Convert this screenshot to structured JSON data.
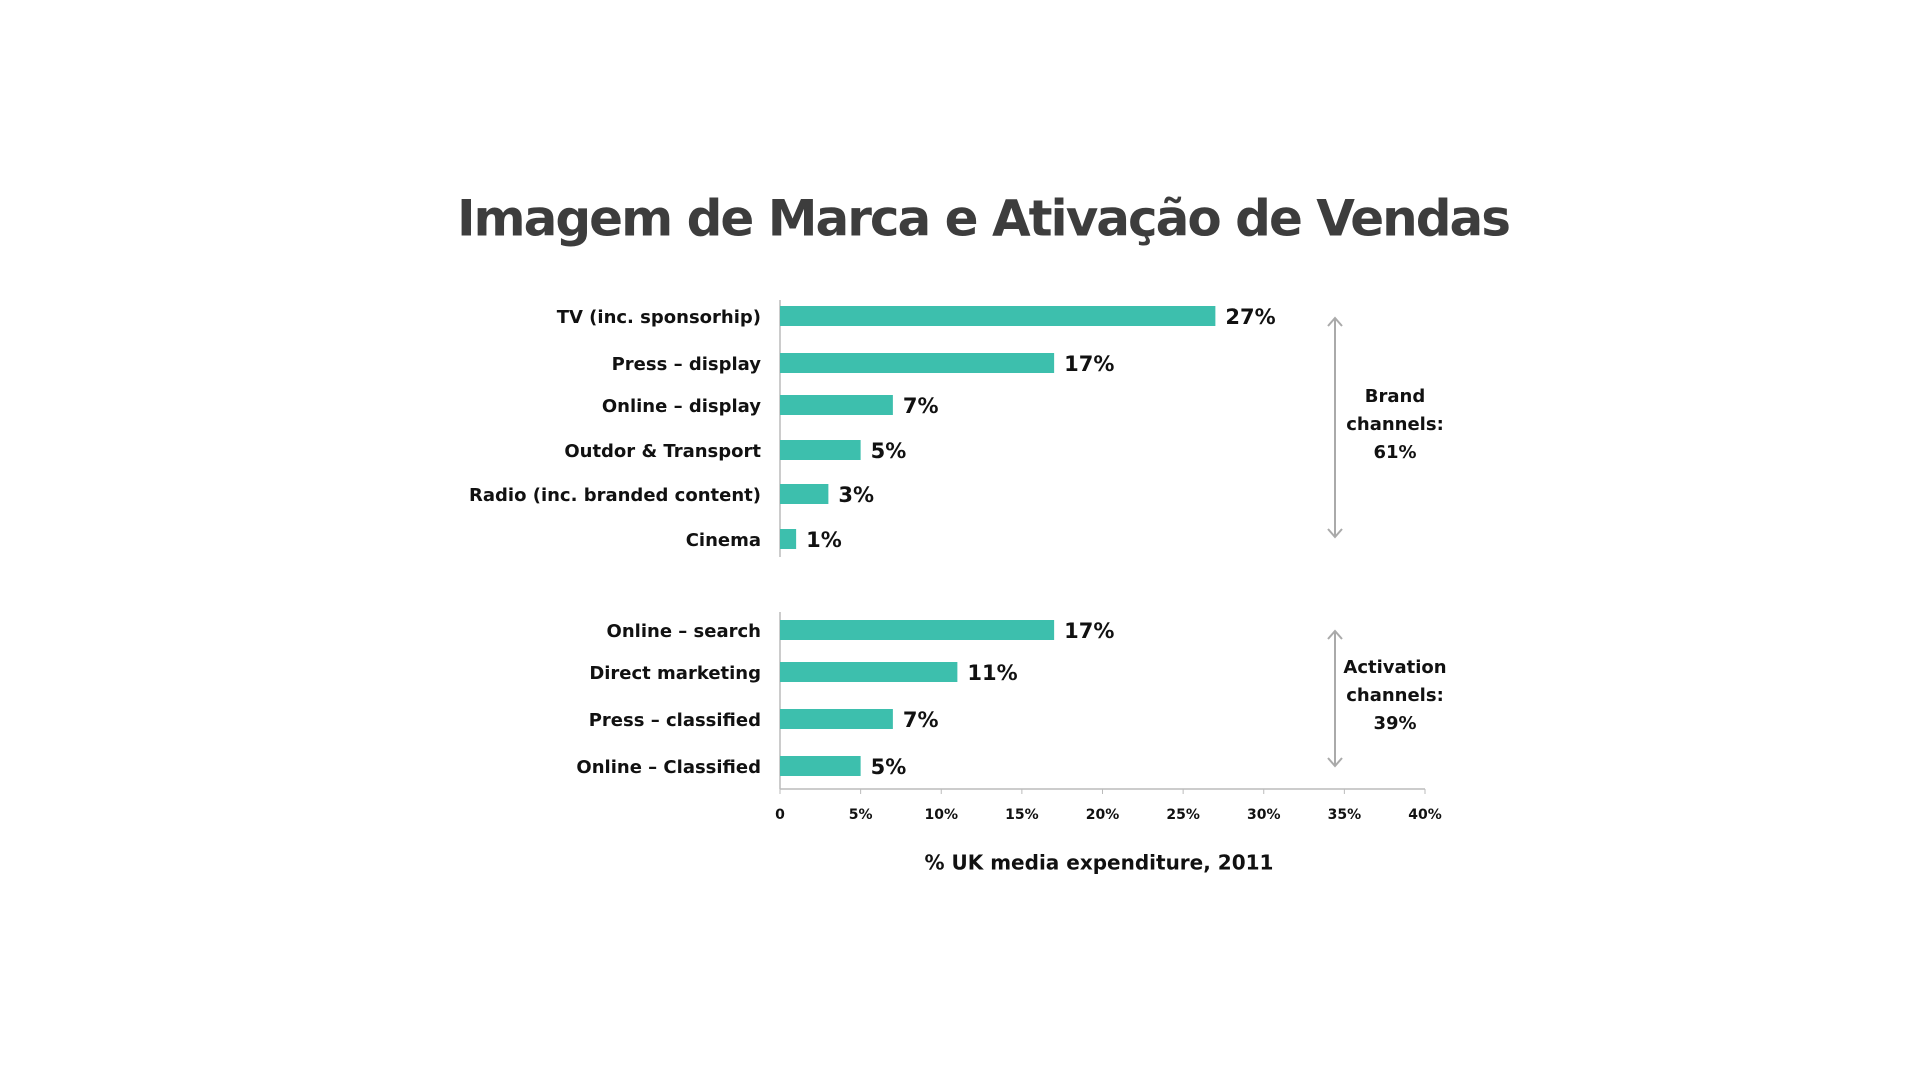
{
  "chart_data": {
    "type": "bar",
    "orientation": "horizontal",
    "title": "Imagem de Marca e Ativação de Vendas",
    "categories": [
      "TV (inc. sponsorhip)",
      "Press – display",
      "Online – display",
      "Outdor & Transport",
      "Radio (inc. branded content)",
      "Cinema",
      "Online – search",
      "Direct marketing",
      "Press – classified",
      "Online – Classified"
    ],
    "values": [
      27,
      17,
      7,
      5,
      3,
      1,
      17,
      11,
      7,
      5
    ],
    "value_labels": [
      "27%",
      "17%",
      "7%",
      "5%",
      "3%",
      "1%",
      "17%",
      "11%",
      "7%",
      "5%"
    ],
    "color": "#3dbfad",
    "xlim": [
      0,
      40
    ],
    "xticks": [
      0,
      {
        "value": 5,
        "label": "5%"
      },
      {
        "value": 10,
        "label": "10%"
      },
      {
        "value": 15,
        "label": "15%"
      },
      {
        "value": 20,
        "label": "20%"
      },
      {
        "value": 25,
        "label": "25%"
      },
      {
        "value": 30,
        "label": "30%"
      },
      {
        "value": 35,
        "label": "35%"
      },
      {
        "value": 40,
        "label": "40%"
      }
    ],
    "xlabel": "% UK media expenditure, 2011",
    "annotations": [
      [
        "Brand",
        "channels:",
        "61%"
      ],
      [
        "Activation",
        "channels:",
        "39%"
      ]
    ]
  }
}
